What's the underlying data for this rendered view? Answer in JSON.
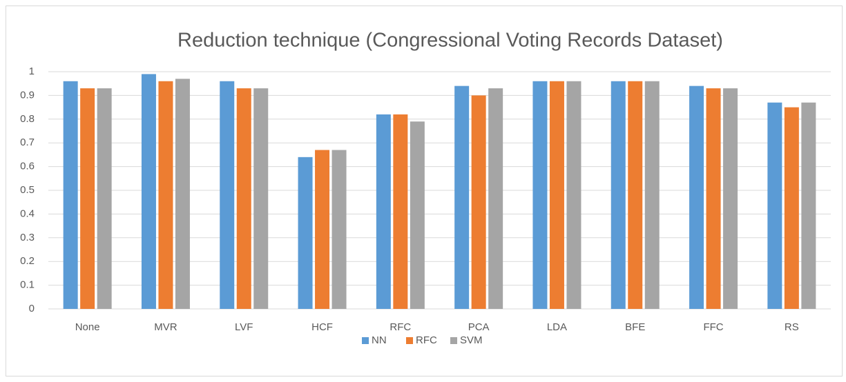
{
  "chart_data": {
    "type": "bar",
    "title": "Reduction technique (Congressional Voting Records Dataset)",
    "categories": [
      "None",
      "MVR",
      "LVF",
      "HCF",
      "RFC",
      "PCA",
      "LDA",
      "BFE",
      "FFC",
      "RS"
    ],
    "series": [
      {
        "name": "NN",
        "color": "#5b9bd5",
        "values": [
          0.96,
          0.99,
          0.96,
          0.64,
          0.82,
          0.94,
          0.96,
          0.96,
          0.94,
          0.87
        ]
      },
      {
        "name": "RFC",
        "color": "#ed7d31",
        "values": [
          0.93,
          0.96,
          0.93,
          0.67,
          0.82,
          0.9,
          0.96,
          0.96,
          0.93,
          0.85
        ]
      },
      {
        "name": "SVM",
        "color": "#a5a5a5",
        "values": [
          0.93,
          0.97,
          0.93,
          0.67,
          0.79,
          0.93,
          0.96,
          0.96,
          0.93,
          0.87
        ]
      }
    ],
    "ylim": [
      0,
      1
    ],
    "yticks": [
      0,
      0.1,
      0.2,
      0.3,
      0.4,
      0.5,
      0.6,
      0.7,
      0.8,
      0.9,
      1
    ],
    "grid": true,
    "legend": "bottom"
  }
}
